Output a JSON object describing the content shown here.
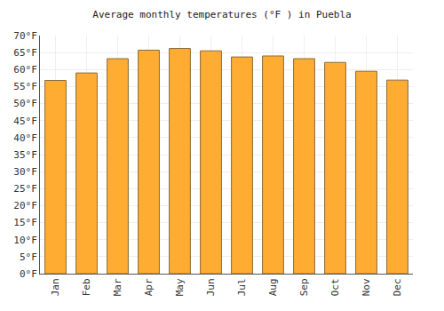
{
  "chart_data": {
    "type": "bar",
    "title": "Average monthly temperatures (°F ) in Puebla",
    "categories": [
      "Jan",
      "Feb",
      "Mar",
      "Apr",
      "May",
      "Jun",
      "Jul",
      "Aug",
      "Sep",
      "Oct",
      "Nov",
      "Dec"
    ],
    "values": [
      56.8,
      59.0,
      63.2,
      65.7,
      66.2,
      65.5,
      63.7,
      64.0,
      63.2,
      62.1,
      59.5,
      56.9
    ],
    "color": "#ffac33",
    "ylim": [
      0,
      70
    ],
    "yticks": [
      {
        "value": 0,
        "label": "0°F"
      },
      {
        "value": 5,
        "label": "5°F"
      },
      {
        "value": 10,
        "label": "10°F"
      },
      {
        "value": 15,
        "label": "15°F"
      },
      {
        "value": 20,
        "label": "20°F"
      },
      {
        "value": 25,
        "label": "25°F"
      },
      {
        "value": 30,
        "label": "30°F"
      },
      {
        "value": 35,
        "label": "35°F"
      },
      {
        "value": 40,
        "label": "40°F"
      },
      {
        "value": 45,
        "label": "45°F"
      },
      {
        "value": 50,
        "label": "50°F"
      },
      {
        "value": 55,
        "label": "55°F"
      },
      {
        "value": 60,
        "label": "60°F"
      },
      {
        "value": 65,
        "label": "65°F"
      },
      {
        "value": 70,
        "label": "70°F"
      }
    ],
    "grid": true
  }
}
